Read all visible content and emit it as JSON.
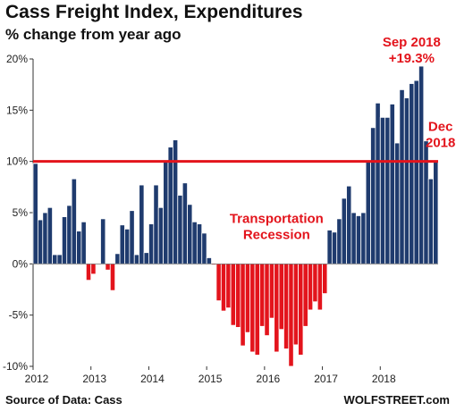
{
  "chart_data": {
    "type": "bar",
    "title": "Cass Freight Index, Expenditures",
    "subtitle": "% change from year ago",
    "y_tick_labels": [
      "20%",
      "15%",
      "10%",
      "5%",
      "0%",
      "-5%",
      "-10%"
    ],
    "y_ticks": [
      20,
      15,
      10,
      5,
      0,
      -5,
      -10
    ],
    "ylim": [
      -10,
      20
    ],
    "x_tick_labels": [
      "2012",
      "2013",
      "2014",
      "2015",
      "2016",
      "2017",
      "2018"
    ],
    "x_start_month": "2012-01",
    "x_end_month": "2018-12",
    "grid": false,
    "reference_line": {
      "value": 10,
      "color": "#e3141c"
    },
    "colors": {
      "positive": "#1f3b6e",
      "negative": "#e3141c",
      "bar_edge": "#ffffff"
    },
    "values": [
      9.8,
      4.3,
      5.0,
      5.5,
      0.9,
      0.9,
      4.6,
      5.7,
      8.3,
      3.2,
      4.1,
      -1.6,
      -1.0,
      0.0,
      4.4,
      -0.6,
      -2.6,
      1.0,
      3.8,
      3.4,
      5.2,
      0.9,
      7.7,
      1.1,
      3.9,
      7.7,
      5.5,
      10.1,
      11.4,
      12.1,
      6.7,
      7.9,
      5.8,
      4.1,
      3.9,
      3.0,
      0.6,
      -0.1,
      -3.6,
      -4.6,
      -4.3,
      -6.0,
      -6.2,
      -8.0,
      -6.7,
      -8.6,
      -8.9,
      -6.1,
      -7.0,
      -5.3,
      -8.6,
      -6.4,
      -8.3,
      -10.0,
      -7.9,
      -8.9,
      -6.1,
      -4.5,
      -3.7,
      -4.5,
      -2.9,
      3.3,
      3.1,
      4.4,
      6.4,
      7.6,
      5.0,
      4.7,
      5.0,
      10.1,
      13.3,
      15.7,
      14.3,
      14.3,
      15.6,
      11.8,
      17.0,
      16.2,
      17.6,
      17.9,
      19.3,
      12.0,
      8.3,
      10.0
    ],
    "annotations": [
      {
        "text_lines": [
          "Transportation",
          "Recession"
        ],
        "color": "#e3141c",
        "x_month": "2016-03",
        "y": 4.0
      },
      {
        "text_lines": [
          "Sep 2018",
          "+19.3%"
        ],
        "color": "#e3141c",
        "x_month": "2018-07",
        "y": 21.2
      },
      {
        "text_lines": [
          "Dec",
          "2018"
        ],
        "color": "#e3141c",
        "x_month": "2019-01",
        "y": 13.0
      }
    ]
  },
  "footer": {
    "source": "Source of Data: Cass",
    "brand": "WOLFSTREET.com"
  }
}
